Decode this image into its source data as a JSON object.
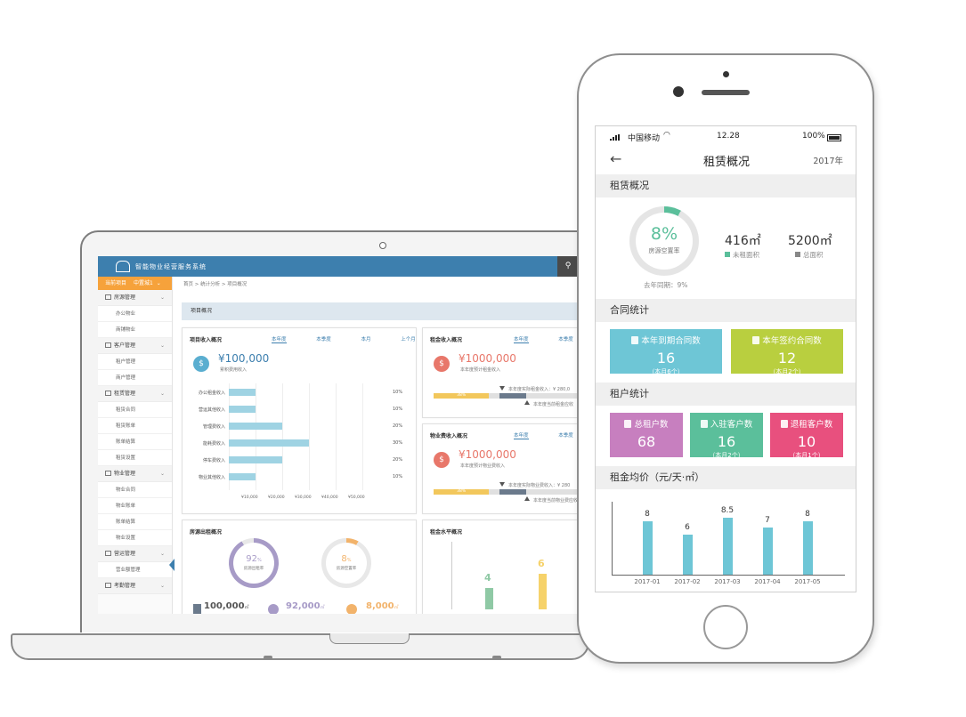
{
  "laptop": {
    "app_title": "智能物业经营服务系统",
    "project_label": "当前项目",
    "project_value": "中置城1",
    "breadcrumb": "首页 > 统计分析 > 项目概况",
    "section_title": "项目概况",
    "sidebar": {
      "groups": [
        {
          "label": "房源管理",
          "items": [
            "办公物业",
            "商铺物业"
          ]
        },
        {
          "label": "客户管理",
          "items": [
            "租户管理",
            "商户管理"
          ]
        },
        {
          "label": "租赁管理",
          "items": [
            "租赁合同",
            "租赁账单",
            "账单结算",
            "租赁设置"
          ]
        },
        {
          "label": "物业管理",
          "items": [
            "物业合同",
            "物业账单",
            "账单结算",
            "物业设置"
          ]
        },
        {
          "label": "营运管理",
          "items": [
            "营业额管理"
          ]
        },
        {
          "label": "考勤管理",
          "items": []
        }
      ]
    },
    "income": {
      "title": "项目收入概况",
      "tabs": [
        "本年度",
        "本季度",
        "本月",
        "上个月"
      ],
      "amount": "¥100,000",
      "note": "累积费用收入",
      "coin_icon": "dollar-coin-icon",
      "bars": [
        {
          "label": "办公租金收入",
          "value": 10,
          "pct": "10%"
        },
        {
          "label": "营运其他收入",
          "value": 10,
          "pct": "10%"
        },
        {
          "label": "管理费收入",
          "value": 20,
          "pct": "20%"
        },
        {
          "label": "能耗费收入",
          "value": 30,
          "pct": "30%"
        },
        {
          "label": "停车费收入",
          "value": 20,
          "pct": "20%"
        },
        {
          "label": "物业其他收入",
          "value": 10,
          "pct": "10%"
        }
      ],
      "x_ticks": [
        "¥10,000",
        "¥20,000",
        "¥30,000",
        "¥40,000",
        "¥50,000"
      ]
    },
    "rent_income": {
      "title": "租金收入概况",
      "tabs": [
        "本年度",
        "本季度"
      ],
      "amount": "¥1000,000",
      "note": "本年度预计租金收入",
      "progress": 0.38,
      "progress_label": "38%",
      "marker_top": "本年度实际租金收入：¥ 280,0",
      "marker_bottom": "本年度当前租金应收"
    },
    "property_income": {
      "title": "物业费收入概况",
      "tabs": [
        "本年度",
        "本季度"
      ],
      "amount": "¥1000,000",
      "note": "本年度预计物业费收入",
      "progress": 0.38,
      "progress_label": "38%",
      "marker_top": "本年度实际物业费收入：¥ 280",
      "marker_bottom": "本年度当前物业费应收"
    },
    "vacancy": {
      "title": "房源出租概况",
      "rent_rate": "92",
      "rent_rate_unit": "%",
      "rent_rate_label": "房源出租率",
      "vacant_rate": "8",
      "vacant_rate_unit": "%",
      "vacant_rate_label": "房源空置率",
      "stats": [
        {
          "value": "100,000",
          "unit": "㎡",
          "color": "#6b7a8c"
        },
        {
          "value": "92,000",
          "unit": "㎡",
          "color": "#a79bc7"
        },
        {
          "value": "8,000",
          "unit": "㎡",
          "color": "#f2b36b"
        }
      ]
    },
    "rent_level": {
      "title": "租金水平概况",
      "bars": [
        {
          "value": 4,
          "color": "#8fc9a5"
        },
        {
          "value": 6,
          "color": "#f6d26a"
        }
      ]
    }
  },
  "phone": {
    "status": {
      "carrier": "中国移动",
      "time": "12.28",
      "battery": "100%"
    },
    "nav": {
      "title": "租赁概况",
      "year": "2017年"
    },
    "lease_overview": {
      "section": "租赁概况",
      "vacancy_pct": "8%",
      "vacancy_value": 0.08,
      "vacancy_label": "房源空置率",
      "last_year": "去年同期：9%",
      "unleased_area": "416㎡",
      "unleased_label": "未租面积",
      "total_area": "5200㎡",
      "total_label": "总面积",
      "accent": "#5bbf9b"
    },
    "contracts": {
      "section": "合同统计",
      "tiles": [
        {
          "label": "本年到期合同数",
          "value": "16",
          "note": "（本月6个）",
          "color": "#6ec6d6"
        },
        {
          "label": "本年签约合同数",
          "value": "12",
          "note": "（本月2个）",
          "color": "#b9cf3f"
        }
      ]
    },
    "tenants": {
      "section": "租户统计",
      "tiles": [
        {
          "label": "总租户数",
          "value": "68",
          "note": "",
          "color": "#c77fbf"
        },
        {
          "label": "入驻客户数",
          "value": "16",
          "note": "（本月2个）",
          "color": "#5bbf9b"
        },
        {
          "label": "退租客户数",
          "value": "10",
          "note": "（本月1个）",
          "color": "#e8507e"
        }
      ]
    },
    "avg_rent": {
      "section": "租金均价（元/天·㎡）"
    }
  },
  "chart_data": {
    "type": "bar",
    "categories": [
      "2017-01",
      "2017-02",
      "2017-03",
      "2017-04",
      "2017-05"
    ],
    "values": [
      8,
      6,
      8.5,
      7,
      8
    ],
    "title": "租金均价（元/天·㎡）",
    "ylim": [
      0,
      9
    ],
    "color": "#6ec6d6"
  }
}
